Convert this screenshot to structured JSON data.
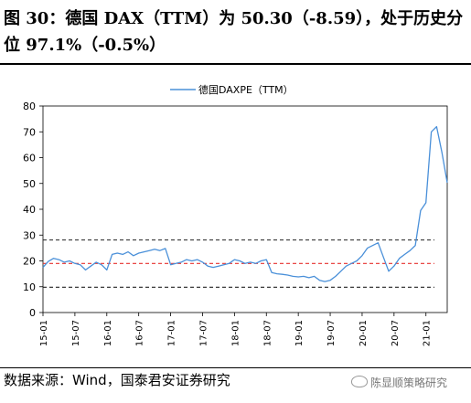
{
  "header": {
    "title": "图 30：德国 DAX（TTM）为 50.30（-8.59），处于历史分位 97.1%（-0.5%）"
  },
  "footer": {
    "source": "数据来源：Wind，国泰君安证券研究",
    "watermark": "陈显顺策略研究"
  },
  "colors": {
    "series": "#4a90d9",
    "red_line": "#e8302f",
    "dashed_lines": "#222222"
  },
  "chart_data": {
    "type": "line",
    "legend": {
      "label": "德国DAXPE（TTM）",
      "placement": "top-center"
    },
    "ylim": [
      0,
      80
    ],
    "yticks": [
      "0",
      "10",
      "20",
      "30",
      "40",
      "50",
      "60",
      "70",
      "80"
    ],
    "xlim": [
      "2015-01",
      "2021-05"
    ],
    "xticks": [
      "15-01",
      "15-07",
      "16-01",
      "16-07",
      "17-01",
      "17-07",
      "18-01",
      "18-07",
      "19-01",
      "19-07",
      "20-01",
      "20-07",
      "21-01"
    ],
    "grid": false,
    "reference_lines": [
      {
        "value": 28.1,
        "style": "dashed",
        "color": "#222222"
      },
      {
        "value": 19.0,
        "style": "dashed",
        "color": "#e8302f"
      },
      {
        "value": 9.8,
        "style": "dashed",
        "color": "#222222"
      }
    ],
    "series": [
      {
        "name": "德国DAXPE（TTM）",
        "x": [
          "2015-01",
          "2015-02",
          "2015-03",
          "2015-04",
          "2015-05",
          "2015-06",
          "2015-07",
          "2015-08",
          "2015-09",
          "2015-10",
          "2015-11",
          "2015-12",
          "2016-01",
          "2016-02",
          "2016-03",
          "2016-04",
          "2016-05",
          "2016-06",
          "2016-07",
          "2016-08",
          "2016-09",
          "2016-10",
          "2016-11",
          "2016-12",
          "2017-01",
          "2017-02",
          "2017-03",
          "2017-04",
          "2017-05",
          "2017-06",
          "2017-07",
          "2017-08",
          "2017-09",
          "2017-10",
          "2017-11",
          "2017-12",
          "2018-01",
          "2018-02",
          "2018-03",
          "2018-04",
          "2018-05",
          "2018-06",
          "2018-07",
          "2018-08",
          "2018-09",
          "2018-10",
          "2018-11",
          "2018-12",
          "2019-01",
          "2019-02",
          "2019-03",
          "2019-04",
          "2019-05",
          "2019-06",
          "2019-07",
          "2019-08",
          "2019-09",
          "2019-10",
          "2019-11",
          "2019-12",
          "2020-01",
          "2020-02",
          "2020-03",
          "2020-04",
          "2020-05",
          "2020-06",
          "2020-07",
          "2020-08",
          "2020-09",
          "2020-10",
          "2020-11",
          "2020-12",
          "2021-01",
          "2021-02",
          "2021-03",
          "2021-04",
          "2021-05"
        ],
        "values": [
          17.5,
          19.8,
          21.0,
          20.5,
          19.5,
          20.0,
          19.0,
          18.5,
          16.5,
          18.0,
          19.5,
          18.5,
          16.5,
          22.5,
          23.0,
          22.5,
          23.5,
          22.0,
          23.0,
          23.5,
          24.0,
          24.5,
          24.0,
          24.8,
          18.5,
          19.0,
          19.5,
          20.5,
          20.0,
          20.5,
          19.5,
          18.0,
          17.5,
          18.0,
          18.5,
          19.0,
          20.5,
          20.0,
          19.0,
          19.5,
          19.0,
          20.0,
          20.5,
          15.5,
          15.0,
          14.8,
          14.5,
          14.0,
          13.8,
          14.0,
          13.5,
          14.0,
          12.5,
          12.0,
          12.5,
          14.0,
          16.0,
          18.0,
          19.0,
          20.0,
          22.0,
          25.0,
          26.0,
          27.0,
          21.5,
          16.0,
          18.0,
          21.0,
          22.5,
          24.0,
          26.0,
          39.5,
          42.5,
          70.0,
          72.0,
          62.0,
          50.3
        ]
      }
    ]
  }
}
